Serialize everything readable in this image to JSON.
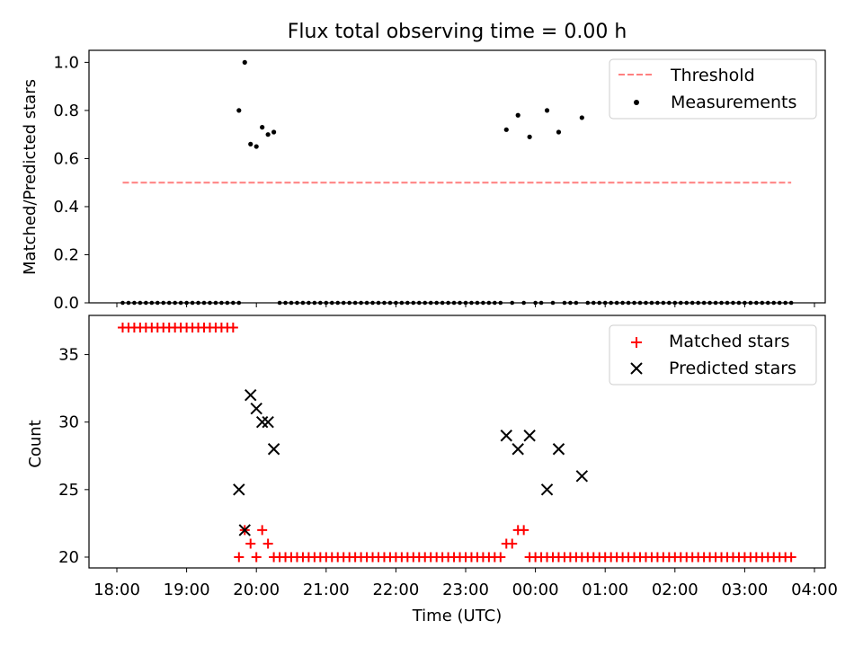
{
  "chart_data": [
    {
      "type": "scatter",
      "title": "Flux total observing time = 0.00 h",
      "ylabel": "Matched/Predicted stars",
      "xlabel": "",
      "ylim": [
        0,
        1.05
      ],
      "xlim": [
        "17:48",
        "04:08"
      ],
      "yticks": [
        0.0,
        0.2,
        0.4,
        0.6,
        0.8,
        1.0
      ],
      "ytick_labels": [
        "0.0",
        "0.2",
        "0.4",
        "0.6",
        "0.8",
        "1.0"
      ],
      "grid": false,
      "legend_position": "top-right",
      "legend": [
        "Threshold",
        "Measurements"
      ],
      "threshold": {
        "name": "Threshold",
        "y": 0.5,
        "x_start": "18:05",
        "x_end": "23:55+",
        "color": "#ff7f7f",
        "style": "dashed"
      },
      "measurements_nonzero": [
        {
          "x": "19:45",
          "y": 0.8
        },
        {
          "x": "19:50",
          "y": 1.0
        },
        {
          "x": "19:55",
          "y": 0.66
        },
        {
          "x": "20:00",
          "y": 0.65
        },
        {
          "x": "20:05",
          "y": 0.73
        },
        {
          "x": "20:10",
          "y": 0.7
        },
        {
          "x": "20:15",
          "y": 0.71
        },
        {
          "x": "23:35",
          "y": 0.72
        },
        {
          "x": "23:45",
          "y": 0.78
        },
        {
          "x": "23:55",
          "y": 0.69
        },
        {
          "x": "00:10",
          "y": 0.8
        },
        {
          "x": "00:20",
          "y": 0.71
        },
        {
          "x": "00:40",
          "y": 0.77
        }
      ],
      "measurements_zero_ranges": [
        {
          "from": "18:05",
          "to": "19:45",
          "step_min": 5
        },
        {
          "from": "20:20",
          "to": "23:30",
          "step_min": 5
        },
        {
          "from": "23:40",
          "to": "23:40",
          "step_min": 5
        },
        {
          "from": "23:50",
          "to": "23:50",
          "step_min": 5
        },
        {
          "from": "00:00",
          "to": "00:05",
          "step_min": 5
        },
        {
          "from": "00:15",
          "to": "00:15",
          "step_min": 5
        },
        {
          "from": "00:25",
          "to": "00:35",
          "step_min": 5
        },
        {
          "from": "00:45",
          "to": "03:40",
          "step_min": 5
        }
      ],
      "colors": {
        "measurements": "#000000",
        "threshold": "#ff7f7f"
      }
    },
    {
      "type": "scatter",
      "title": "",
      "xlabel": "Time (UTC)",
      "ylabel": "Count",
      "ylim": [
        19.2,
        37.9
      ],
      "yticks": [
        20,
        25,
        30,
        35
      ],
      "ytick_labels": [
        "20",
        "25",
        "30",
        "35"
      ],
      "xticks": [
        "18:00",
        "19:00",
        "20:00",
        "21:00",
        "22:00",
        "23:00",
        "00:00",
        "01:00",
        "02:00",
        "03:00",
        "04:00"
      ],
      "grid": false,
      "legend_position": "top-right",
      "legend": [
        "Matched stars",
        "Predicted stars"
      ],
      "matched": {
        "name": "Matched stars",
        "color": "#ff0000",
        "points": [
          {
            "x": "19:45",
            "y": 20
          },
          {
            "x": "19:50",
            "y": 22
          },
          {
            "x": "19:55",
            "y": 21
          },
          {
            "x": "20:00",
            "y": 20
          },
          {
            "x": "20:05",
            "y": 22
          },
          {
            "x": "20:10",
            "y": 21
          },
          {
            "x": "23:35",
            "y": 21
          },
          {
            "x": "23:40",
            "y": 21
          },
          {
            "x": "23:45",
            "y": 22
          },
          {
            "x": "23:50",
            "y": 22
          }
        ],
        "ranges": [
          {
            "from": "18:05",
            "to": "19:40",
            "step_min": 5,
            "y": 37
          },
          {
            "from": "20:15",
            "to": "23:30",
            "step_min": 5,
            "y": 20
          },
          {
            "from": "23:55",
            "to": "03:40",
            "step_min": 5,
            "y": 20
          }
        ]
      },
      "predicted": {
        "name": "Predicted stars",
        "color": "#000000",
        "points": [
          {
            "x": "19:45",
            "y": 25
          },
          {
            "x": "19:50",
            "y": 22
          },
          {
            "x": "19:55",
            "y": 32
          },
          {
            "x": "20:00",
            "y": 31
          },
          {
            "x": "20:05",
            "y": 30
          },
          {
            "x": "20:10",
            "y": 30
          },
          {
            "x": "20:15",
            "y": 28
          },
          {
            "x": "23:35",
            "y": 29
          },
          {
            "x": "23:45",
            "y": 28
          },
          {
            "x": "23:55",
            "y": 29
          },
          {
            "x": "00:10",
            "y": 25
          },
          {
            "x": "00:20",
            "y": 28
          },
          {
            "x": "00:40",
            "y": 26
          }
        ]
      }
    }
  ]
}
